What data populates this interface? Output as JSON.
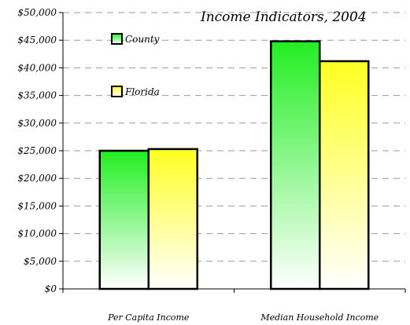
{
  "chart_data": {
    "type": "bar",
    "title": "Income Indicators, 2004",
    "categories": [
      "Per Capita Income",
      "Median Household Income"
    ],
    "series": [
      {
        "name": "County",
        "values": [
          25000,
          44800
        ],
        "color": "#22ee22"
      },
      {
        "name": "Florida",
        "values": [
          25300,
          41200
        ],
        "color": "#ffff22"
      }
    ],
    "ylim": [
      0,
      50000
    ],
    "yticks": [
      0,
      5000,
      10000,
      15000,
      20000,
      25000,
      30000,
      35000,
      40000,
      45000,
      50000
    ],
    "ytick_labels": [
      "$0",
      "$5,000",
      "$10,000",
      "$15,000",
      "$20,000",
      "$25,000",
      "$30,000",
      "$35,000",
      "$40,000",
      "$45,000",
      "$50,000"
    ],
    "grid": true,
    "legend_position": "top-left"
  }
}
